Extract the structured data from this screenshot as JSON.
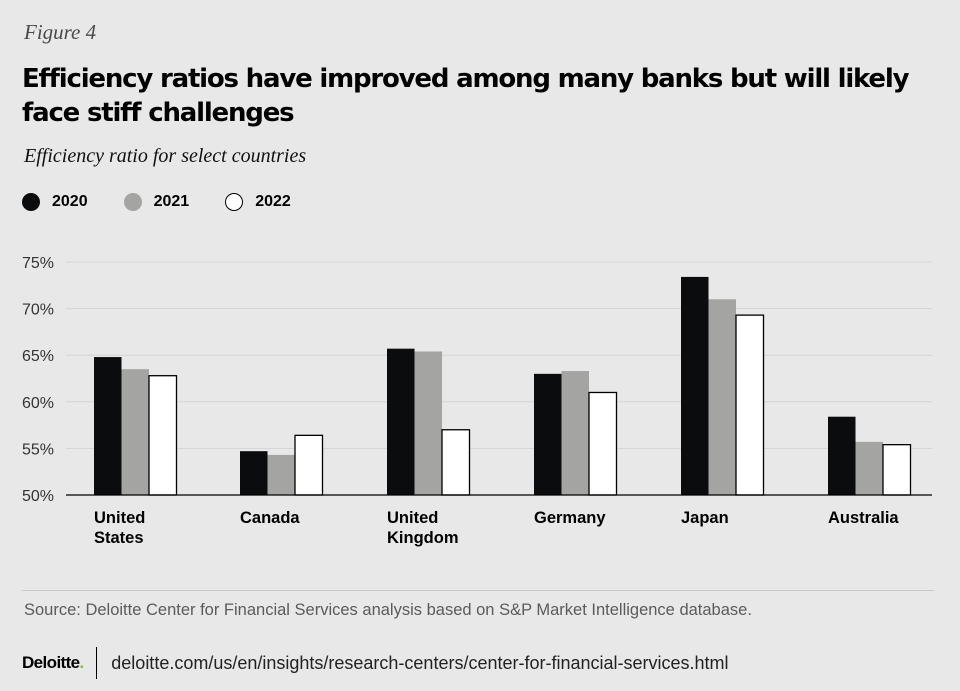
{
  "figure_label": "Figure 4",
  "title": "Efficiency ratios have improved among many banks but will likely face stiff challenges",
  "subtitle": "Efficiency ratio for select countries",
  "legend": [
    {
      "label": "2020",
      "color": "#0a0c0d"
    },
    {
      "label": "2021",
      "color": "#a4a4a3"
    },
    {
      "label": "2022",
      "color": "#ffffff"
    }
  ],
  "chart_data": {
    "type": "bar",
    "title": "Efficiency ratio for select countries",
    "categories": [
      [
        "United",
        "States"
      ],
      [
        "Canada"
      ],
      [
        "United",
        "Kingdom"
      ],
      [
        "Germany"
      ],
      [
        "Japan"
      ],
      [
        "Australia"
      ]
    ],
    "series": [
      {
        "name": "2020",
        "color": "#0a0c0d",
        "values": [
          64.8,
          54.7,
          65.7,
          63.0,
          73.4,
          58.4
        ]
      },
      {
        "name": "2021",
        "color": "#a4a4a3",
        "values": [
          63.5,
          54.3,
          65.4,
          63.3,
          71.0,
          55.7
        ]
      },
      {
        "name": "2022",
        "color": "#ffffff",
        "values": [
          62.8,
          56.4,
          57.0,
          61.0,
          69.3,
          55.4
        ]
      }
    ],
    "ylim": [
      50,
      75
    ],
    "yticks": [
      50,
      55,
      60,
      65,
      70,
      75
    ],
    "ytick_labels": [
      "50%",
      "55%",
      "60%",
      "65%",
      "70%",
      "75%"
    ],
    "xlabel": "",
    "ylabel": "",
    "grid": true
  },
  "source": "Source: Deloitte Center for Financial Services analysis based on S&P Market Intelligence database.",
  "footer": {
    "logo": "Deloitte",
    "logo_dot": ".",
    "url": "deloitte.com/us/en/insights/research-centers/center-for-financial-services.html"
  }
}
